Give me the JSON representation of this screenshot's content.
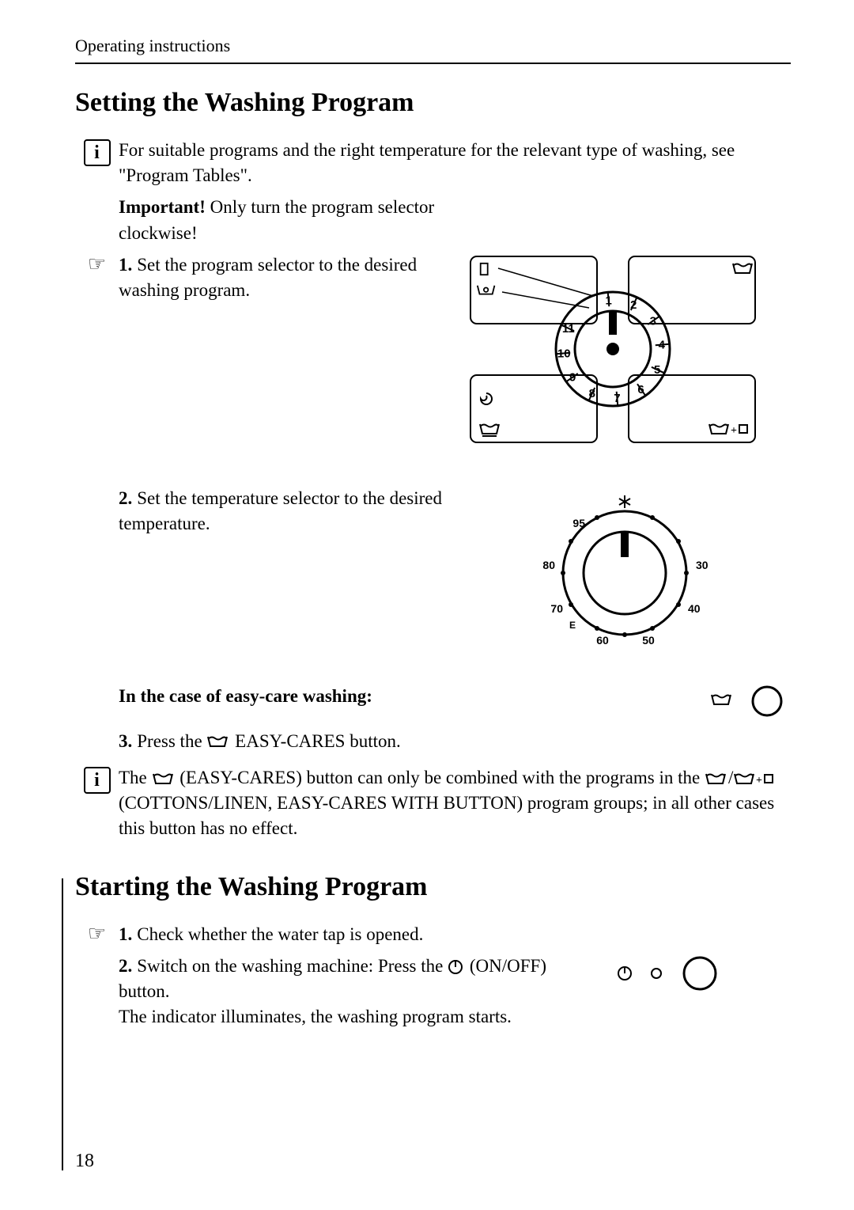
{
  "header": "Operating instructions",
  "page_number": "18",
  "section1": {
    "title": "Setting the Washing Program",
    "intro": "For suitable programs and the right temperature for the relevant type of washing, see \"Program Tables\".",
    "important_label": "Important!",
    "important_text": " Only turn the program selector clockwise!",
    "step1_num": "1.",
    "step1": "Set the program selector to the desired washing program.",
    "step2_num": "2.",
    "step2": "Set the temperature selector to the desired temperature.",
    "easy_heading": "In the case of easy-care washing:",
    "step3_num": "3.",
    "step3_a": "Press the ",
    "step3_b": " EASY-CARES button.",
    "note_a": "The ",
    "note_b": " (EASY-CARES) button can only be combined with the programs in the ",
    "note_c": " (COTTONS/LINEN, EASY-CARES WITH BUTTON) program groups; in all other cases this button has no effect."
  },
  "section2": {
    "title": "Starting the Washing Program",
    "step1_num": "1.",
    "step1": "Check whether the water tap is opened.",
    "step2_num": "2.",
    "step2_a": "Switch on the washing machine: Press the ",
    "step2_b": " (ON/OFF) button.",
    "step2_line2": "The indicator illuminates, the washing program starts."
  },
  "program_dial": {
    "numbers": [
      "1",
      "2",
      "3",
      "4",
      "5",
      "6",
      "7",
      "8",
      "9",
      "10",
      "11"
    ]
  },
  "temp_dial": {
    "labels": [
      "95",
      "80",
      "70",
      "E",
      "60",
      "50",
      "40",
      "30"
    ]
  },
  "colors": {
    "fg": "#000000",
    "bg": "#ffffff"
  }
}
